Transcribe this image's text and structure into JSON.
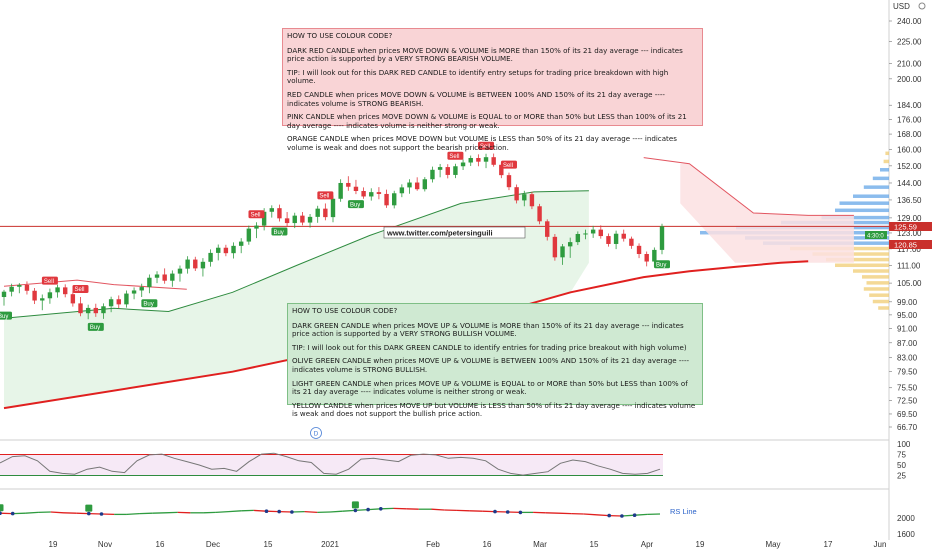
{
  "notes": {
    "red": {
      "title": "HOW TO USE COLOUR CODE?",
      "p1": "DARK RED CANDLE when prices MOVE DOWN & VOLUME is MORE than 150% of its 21 day average --- indicates price action is supported by a VERY STRONG BEARISH VOLUME.",
      "p2": "TIP: I will look out for this DARK RED CANDLE to identify entry setups for trading price breakdown with high volume.",
      "p3": "RED CANDLE when prices MOVE DOWN & VOLUME is BETWEEN 100% AND 150% of its 21 day average ---- indicates volume is STRONG BEARISH.",
      "p4": "PINK CANDLE when prices MOVE DOWN & VOLUME is EQUAL to or MORE than 50% but LESS than 100% of its 21 day average ---- indicates volume is neither strong or weak.",
      "p5": "ORANGE CANDLE when prices MOVE DOWN but VOLUME is LESS than 50% of its 21 day average ---- indicates volume is weak and does not support the bearish price action."
    },
    "green": {
      "title": "HOW TO USE COLOUR CODE?",
      "p1": "DARK GREEN CANDLE when prices MOVE UP & VOLUME is MORE than 150% of its 21 day average --- indicates price action is supported by a VERY STRONG BULLISH VOLUME.",
      "p2": "TIP: I will look out for this DARK GREEN CANDLE to identify entries for trading price breakout with high volume)",
      "p3": "OLIVE GREEN CANDLE when prices MOVE UP & VOLUME is BETWEEN 100% AND 150% of its 21 day average ---- indicates volume is STRONG BULLISH.",
      "p4": "LIGHT GREEN CANDLE when prices MOVE UP & VOLUME is EQUAL to or MORE than 50% but LESS than 100% of its 21 day average ---- indicates volume is neither strong or weak.",
      "p5": "YELLOW CANDLE when prices MOVE UP but VOLUME is LESS than 50% of its 21 day average ---- indicates volume is weak and does not support the bullish price action."
    }
  },
  "watermark": "www.twitter.com/petersinguili",
  "header": {
    "currency": "USD"
  },
  "colors": {
    "up": "#2e9b3f",
    "down": "#e0383e",
    "ma200": "#e0201f",
    "stop": "#2e8b3f",
    "hline": "#c9302c"
  },
  "chart_data": {
    "type": "candlestick",
    "price_axis": {
      "scale": "log",
      "ticks": [
        240.0,
        225.0,
        210.0,
        200.0,
        184.0,
        176.0,
        168.0,
        160.0,
        152.0,
        144.0,
        136.5,
        129.0,
        123.0,
        117.0,
        111.0,
        105.0,
        99.0,
        95.0,
        91.0,
        87.0,
        83.0,
        79.5,
        75.5,
        72.5,
        69.5,
        66.7
      ]
    },
    "price_labels": {
      "last": "125.59",
      "level": "120.85",
      "countdown": "4:30:0"
    },
    "horizontal_line": 125.59,
    "x_axis": {
      "ticks": [
        "19",
        "Nov",
        "16",
        "Dec",
        "15",
        "2021",
        "Feb",
        "16",
        "Mar",
        "15",
        "Apr",
        "19",
        "May",
        "17",
        "Jun"
      ]
    },
    "candles": [
      [
        100.5,
        102.8,
        97.8,
        102.2
      ],
      [
        102.2,
        104.8,
        100.7,
        103.8
      ],
      [
        103.8,
        105.0,
        101.7,
        104.4
      ],
      [
        104.4,
        105.6,
        101.3,
        102.5
      ],
      [
        102.5,
        103.4,
        98.3,
        99.4
      ],
      [
        99.4,
        101.3,
        96.4,
        100.1
      ],
      [
        100.1,
        103.2,
        98.4,
        102.0
      ],
      [
        102.0,
        104.5,
        100.3,
        103.6
      ],
      [
        103.6,
        104.6,
        100.4,
        101.4
      ],
      [
        101.4,
        102.4,
        97.5,
        98.5
      ],
      [
        98.5,
        100.5,
        94.6,
        95.5
      ],
      [
        95.5,
        98.1,
        93.7,
        97.1
      ],
      [
        97.1,
        98.4,
        94.4,
        95.5
      ],
      [
        95.5,
        98.5,
        93.8,
        97.6
      ],
      [
        97.6,
        100.6,
        95.8,
        99.8
      ],
      [
        99.8,
        101.0,
        97.0,
        98.2
      ],
      [
        98.2,
        102.6,
        97.2,
        101.6
      ],
      [
        101.6,
        103.6,
        99.8,
        102.6
      ],
      [
        102.6,
        104.8,
        100.5,
        103.7
      ],
      [
        103.7,
        107.9,
        101.7,
        106.8
      ],
      [
        106.8,
        109.0,
        105.0,
        107.9
      ],
      [
        107.9,
        110.0,
        104.8,
        105.8
      ],
      [
        105.8,
        109.3,
        103.8,
        108.2
      ],
      [
        108.2,
        111.0,
        105.5,
        109.9
      ],
      [
        109.9,
        114.3,
        108.2,
        113.1
      ],
      [
        113.1,
        114.1,
        109.1,
        110.0
      ],
      [
        110.0,
        113.6,
        107.2,
        112.3
      ],
      [
        112.3,
        116.8,
        110.6,
        115.5
      ],
      [
        115.5,
        118.6,
        112.8,
        117.4
      ],
      [
        117.4,
        118.5,
        114.3,
        115.4
      ],
      [
        115.4,
        119.4,
        113.5,
        118.1
      ],
      [
        118.1,
        121.0,
        115.4,
        119.7
      ],
      [
        119.7,
        125.9,
        118.5,
        124.7
      ],
      [
        124.7,
        127.2,
        121.0,
        125.9
      ],
      [
        125.9,
        133.0,
        124.0,
        131.5
      ],
      [
        131.5,
        134.2,
        129.1,
        133.0
      ],
      [
        133.0,
        134.5,
        127.5,
        128.8
      ],
      [
        128.8,
        131.4,
        125.3,
        126.9
      ],
      [
        126.9,
        131.1,
        124.9,
        129.9
      ],
      [
        129.9,
        131.4,
        126.0,
        127.1
      ],
      [
        127.1,
        130.6,
        125.1,
        129.4
      ],
      [
        129.4,
        134.0,
        127.0,
        132.8
      ],
      [
        132.8,
        135.0,
        128.0,
        129.3
      ],
      [
        129.3,
        138.4,
        127.2,
        137.0
      ],
      [
        137.0,
        145.7,
        135.7,
        144.0
      ],
      [
        144.0,
        147.1,
        140.5,
        142.3
      ],
      [
        142.3,
        145.4,
        139.0,
        140.4
      ],
      [
        140.4,
        142.0,
        137.0,
        138.0
      ],
      [
        138.0,
        141.6,
        136.2,
        139.9
      ],
      [
        139.9,
        142.1,
        136.8,
        139.1
      ],
      [
        139.1,
        141.0,
        133.1,
        134.2
      ],
      [
        134.2,
        140.5,
        132.9,
        139.4
      ],
      [
        139.4,
        143.4,
        137.7,
        142.0
      ],
      [
        142.0,
        145.7,
        139.2,
        144.2
      ],
      [
        144.2,
        146.6,
        140.5,
        141.2
      ],
      [
        141.2,
        146.7,
        140.2,
        145.7
      ],
      [
        145.7,
        151.6,
        144.2,
        150.1
      ],
      [
        150.1,
        152.9,
        146.6,
        151.4
      ],
      [
        151.4,
        152.8,
        146.1,
        147.7
      ],
      [
        147.7,
        153.0,
        146.2,
        151.8
      ],
      [
        151.8,
        155.1,
        150.0,
        153.6
      ],
      [
        153.6,
        157.0,
        151.9,
        155.8
      ],
      [
        155.8,
        157.6,
        151.8,
        154.0
      ],
      [
        154.0,
        157.9,
        150.9,
        156.2
      ],
      [
        156.2,
        158.0,
        151.6,
        152.5
      ],
      [
        152.5,
        153.6,
        146.2,
        147.6
      ],
      [
        147.6,
        148.8,
        140.8,
        142.1
      ],
      [
        142.1,
        143.3,
        135.0,
        136.3
      ],
      [
        136.3,
        140.5,
        133.8,
        139.0
      ],
      [
        139.0,
        140.0,
        132.6,
        133.8
      ],
      [
        133.8,
        134.8,
        126.4,
        127.6
      ],
      [
        127.6,
        128.4,
        120.1,
        121.5
      ],
      [
        121.5,
        122.6,
        112.7,
        113.9
      ],
      [
        113.9,
        118.8,
        111.2,
        117.9
      ],
      [
        117.9,
        121.2,
        113.7,
        119.5
      ],
      [
        119.5,
        123.6,
        118.4,
        122.6
      ],
      [
        122.6,
        124.3,
        120.6,
        122.8
      ],
      [
        122.8,
        125.8,
        121.1,
        124.3
      ],
      [
        124.3,
        126.0,
        120.8,
        121.8
      ],
      [
        121.8,
        122.8,
        117.8,
        118.8
      ],
      [
        118.8,
        123.9,
        116.9,
        122.7
      ],
      [
        122.7,
        124.3,
        119.7,
        120.8
      ],
      [
        120.8,
        121.6,
        117.0,
        118.1
      ],
      [
        118.1,
        119.0,
        113.6,
        115.1
      ],
      [
        115.1,
        116.0,
        110.7,
        112.4
      ],
      [
        112.4,
        117.5,
        110.6,
        116.6
      ],
      [
        116.6,
        126.6,
        115.0,
        125.6
      ]
    ],
    "ma200": [
      [
        0,
        70.8
      ],
      [
        0.25,
        79.4
      ],
      [
        0.5,
        92.5
      ],
      [
        0.62,
        102.0
      ],
      [
        0.7,
        107.0
      ],
      [
        0.75,
        109.0
      ],
      [
        0.8,
        110.5
      ],
      [
        0.85,
        112.0
      ],
      [
        0.88,
        112.5
      ]
    ],
    "upper_band": [
      [
        0.0,
        104.0
      ],
      [
        0.08,
        106.0
      ],
      [
        0.12,
        104.5
      ],
      [
        0.2,
        103.0
      ],
      [
        0.3,
        118.0
      ],
      [
        0.45,
        131.0
      ],
      [
        0.6,
        148.0
      ],
      [
        0.7,
        156.0
      ],
      [
        0.75,
        153.0
      ],
      [
        0.82,
        131.0
      ],
      [
        0.88,
        130.0
      ],
      [
        0.93,
        130.0
      ]
    ],
    "lower_band": [
      [
        0.0,
        94.0
      ],
      [
        0.12,
        97.0
      ],
      [
        0.18,
        96.0
      ],
      [
        0.25,
        102.0
      ],
      [
        0.32,
        111.0
      ],
      [
        0.4,
        122.0
      ],
      [
        0.5,
        135.0
      ],
      [
        0.58,
        140.0
      ],
      [
        0.64,
        140.5
      ]
    ],
    "signals": [
      {
        "label": "Sell",
        "i": 6,
        "pos": "above"
      },
      {
        "label": "Buy",
        "i": 0,
        "pos": "below"
      },
      {
        "label": "Sell",
        "i": 10,
        "pos": "above"
      },
      {
        "label": "Buy",
        "i": 12,
        "pos": "below"
      },
      {
        "label": "Buy",
        "i": 19,
        "pos": "below"
      },
      {
        "label": "Sell",
        "i": 33,
        "pos": "above"
      },
      {
        "label": "Buy",
        "i": 36,
        "pos": "below"
      },
      {
        "label": "Sell",
        "i": 42,
        "pos": "above"
      },
      {
        "label": "Buy",
        "i": 46,
        "pos": "below"
      },
      {
        "label": "Sell",
        "i": 59,
        "pos": "above"
      },
      {
        "label": "Sell",
        "i": 63,
        "pos": "above"
      },
      {
        "label": "Sell",
        "i": 66,
        "pos": "above"
      },
      {
        "label": "Buy",
        "i": 86,
        "pos": "below"
      }
    ],
    "volume_profile": [
      [
        158,
        4
      ],
      [
        154,
        6
      ],
      [
        150,
        10
      ],
      [
        146,
        18
      ],
      [
        142,
        28
      ],
      [
        138,
        40
      ],
      [
        135,
        55
      ],
      [
        132,
        60
      ],
      [
        129,
        75
      ],
      [
        127,
        120
      ],
      [
        125,
        170
      ],
      [
        123,
        210
      ],
      [
        121,
        160
      ],
      [
        119,
        140
      ],
      [
        117,
        110
      ],
      [
        115,
        85
      ],
      [
        113,
        70
      ],
      [
        111,
        60
      ],
      [
        109,
        40
      ],
      [
        107,
        30
      ],
      [
        105,
        25
      ],
      [
        103,
        28
      ],
      [
        101,
        22
      ],
      [
        99,
        18
      ],
      [
        97,
        12
      ]
    ],
    "oscillator": {
      "ticks": [
        100,
        75,
        50,
        25
      ],
      "upper": 75,
      "lower": 25,
      "values": [
        55,
        70,
        72,
        60,
        35,
        30,
        28,
        40,
        45,
        35,
        32,
        60,
        74,
        76,
        66,
        58,
        50,
        40,
        42,
        35,
        58,
        76,
        78,
        70,
        60,
        56,
        30,
        28,
        40,
        64,
        66,
        62,
        58,
        73,
        76,
        74,
        66,
        68,
        66,
        60,
        40,
        30,
        26,
        30,
        34,
        54,
        62,
        58,
        48,
        40,
        30,
        28,
        30,
        40
      ]
    },
    "rs_line": {
      "label": "RS Line",
      "ticks": [
        2000,
        1600
      ],
      "values": [
        2120,
        2110,
        2120,
        2140,
        2150,
        2130,
        2120,
        2110,
        2100,
        2090,
        2090,
        2110,
        2120,
        2130,
        2140,
        2130,
        2130,
        2140,
        2160,
        2180,
        2190,
        2170,
        2160,
        2150,
        2160,
        2140,
        2150,
        2170,
        2190,
        2210,
        2230,
        2240,
        2230,
        2220,
        2220,
        2200,
        2190,
        2180,
        2170,
        2160,
        2150,
        2140,
        2140,
        2130,
        2120,
        2110,
        2100,
        2080,
        2060,
        2050,
        2070,
        2090,
        2100
      ]
    }
  }
}
